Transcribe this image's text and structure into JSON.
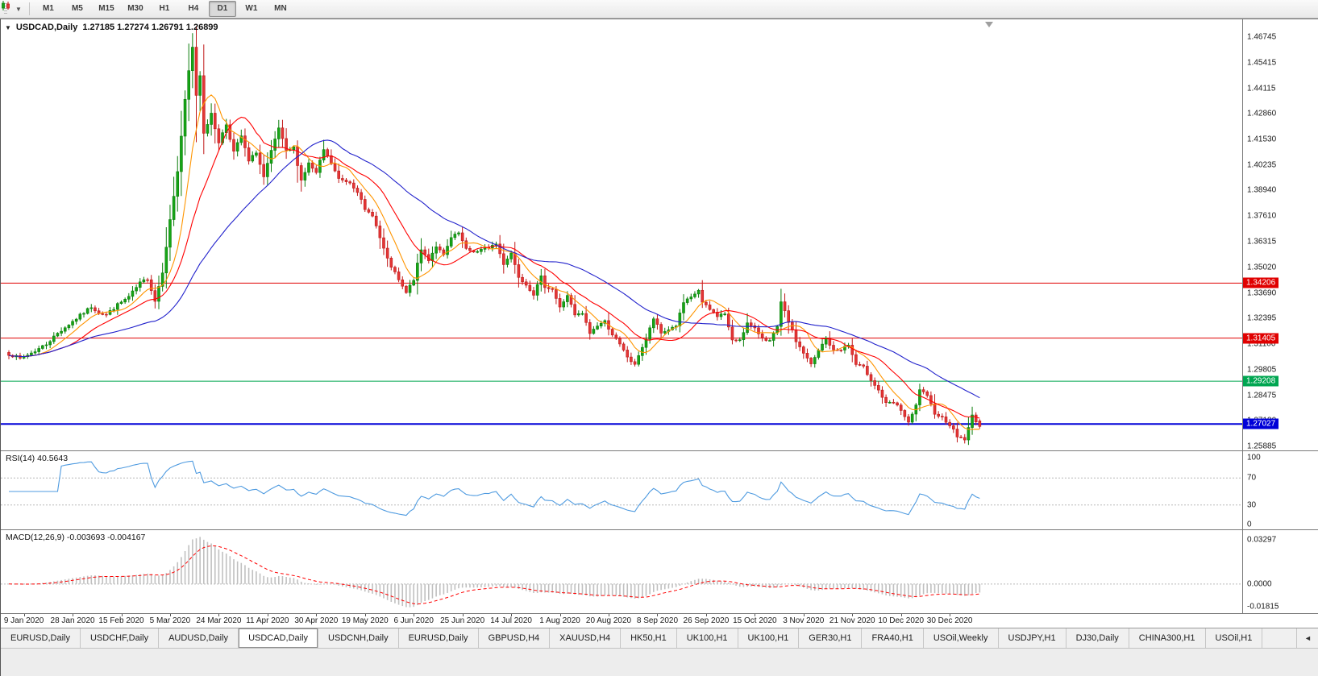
{
  "toolbar": {
    "timeframes": [
      "M1",
      "M5",
      "M15",
      "M30",
      "H1",
      "H4",
      "D1",
      "W1",
      "MN"
    ],
    "active_timeframe": "D1"
  },
  "chart": {
    "symbol_title": "USDCAD,Daily",
    "ohlc_text": "1.27185 1.27274 1.26791 1.26899",
    "price_axis_labels": [
      "1.46745",
      "1.45415",
      "1.44115",
      "1.42860",
      "1.41530",
      "1.40235",
      "1.38940",
      "1.37610",
      "1.36315",
      "1.35020",
      "1.33690",
      "1.32395",
      "1.31100",
      "1.29805",
      "1.28475",
      "1.27180",
      "1.25885"
    ]
  },
  "rsi": {
    "label": "RSI(14)",
    "value": "40.5643",
    "axis_labels": [
      "100",
      "70",
      "30",
      "0"
    ],
    "levels": [
      70,
      30
    ]
  },
  "macd": {
    "label": "MACD(12,26,9)",
    "values": "-0.003693 -0.004167",
    "axis_labels": [
      {
        "text": "0.03297",
        "pos": "top"
      },
      {
        "text": "0.0000",
        "pos": "zero"
      },
      {
        "text": "-0.01815",
        "pos": "bottom"
      }
    ]
  },
  "time_axis": {
    "labels": [
      "9 Jan 2020",
      "28 Jan 2020",
      "15 Feb 2020",
      "5 Mar 2020",
      "24 Mar 2020",
      "11 Apr 2020",
      "30 Apr 2020",
      "19 May 2020",
      "6 Jun 2020",
      "25 Jun 2020",
      "14 Jul 2020",
      "1 Aug 2020",
      "20 Aug 2020",
      "8 Sep 2020",
      "26 Sep 2020",
      "15 Oct 2020",
      "3 Nov 2020",
      "21 Nov 2020",
      "10 Dec 2020",
      "30 Dec 2020"
    ]
  },
  "tabs": {
    "items": [
      "EURUSD,Daily",
      "USDCHF,Daily",
      "AUDUSD,Daily",
      "USDCAD,Daily",
      "USDCNH,Daily",
      "EURUSD,Daily",
      "GBPUSD,H4",
      "XAUUSD,H4",
      "HK50,H1",
      "UK100,H1",
      "UK100,H1",
      "GER30,H1",
      "FRA40,H1",
      "USOil,Weekly",
      "USDJPY,H1",
      "DJ30,Daily",
      "CHINA300,H1",
      "USOil,H1"
    ],
    "active_index": 3,
    "scroll_arrow": "◄"
  },
  "colors": {
    "bull": "#16a516",
    "bull_edge": "#0b7d0b",
    "bear": "#e33636",
    "bear_edge": "#c01818",
    "ma_fast": "#ff9500",
    "ma_mid": "#ff0000",
    "ma_slow": "#2222cc",
    "rsi_line": "#4f9be0",
    "macd_hist": "#c0c0c0",
    "macd_signal": "#ff0000",
    "level_dotted": "#b8b8b8"
  },
  "chart_data": {
    "type": "candlestick",
    "symbol": "USDCAD",
    "timeframe": "Daily",
    "last_ohlc": {
      "open": 1.27185,
      "high": 1.27274,
      "low": 1.26791,
      "close": 1.26899
    },
    "ylim": [
      1.25885,
      1.46745
    ],
    "num_candles": 260,
    "x_label_step_bars": 13,
    "hlines": [
      {
        "price": 1.34206,
        "label": "1.34206",
        "color": "#e00000",
        "width": 1
      },
      {
        "price": 1.31405,
        "label": "1.31405",
        "color": "#e00000",
        "width": 1
      },
      {
        "price": 1.29208,
        "label": "1.29208",
        "color": "#00a651",
        "width": 1
      },
      {
        "price": 1.27027,
        "label": "1.27027",
        "color": "#0000d8",
        "width": 2
      }
    ],
    "moving_averages": [
      {
        "period": 8,
        "color": "#ff9500"
      },
      {
        "period": 17,
        "color": "#ff0000"
      },
      {
        "period": 40,
        "color": "#2222cc"
      }
    ],
    "indicators": {
      "rsi": {
        "period": 14,
        "current": 40.5643
      },
      "macd": {
        "fast": 12,
        "slow": 26,
        "signal": 9,
        "current_macd": -0.003693,
        "current_signal": -0.004167
      }
    },
    "price_keypoints": [
      [
        0,
        1.306
      ],
      [
        3,
        1.3035
      ],
      [
        7,
        1.3075
      ],
      [
        10,
        1.311
      ],
      [
        13,
        1.3165
      ],
      [
        16,
        1.321
      ],
      [
        19,
        1.3255
      ],
      [
        22,
        1.33
      ],
      [
        24,
        1.327
      ],
      [
        26,
        1.326
      ],
      [
        29,
        1.331
      ],
      [
        32,
        1.335
      ],
      [
        35,
        1.342
      ],
      [
        37,
        1.3445
      ],
      [
        39,
        1.333
      ],
      [
        41,
        1.348
      ],
      [
        43,
        1.374
      ],
      [
        45,
        1.399
      ],
      [
        47,
        1.435
      ],
      [
        48,
        1.45
      ],
      [
        49,
        1.462
      ],
      [
        50,
        1.438
      ],
      [
        51,
        1.448
      ],
      [
        52,
        1.419
      ],
      [
        54,
        1.428
      ],
      [
        56,
        1.414
      ],
      [
        58,
        1.423
      ],
      [
        60,
        1.409
      ],
      [
        62,
        1.417
      ],
      [
        64,
        1.404
      ],
      [
        66,
        1.409
      ],
      [
        68,
        1.396
      ],
      [
        70,
        1.409
      ],
      [
        72,
        1.421
      ],
      [
        74,
        1.409
      ],
      [
        76,
        1.411
      ],
      [
        78,
        1.3945
      ],
      [
        80,
        1.403
      ],
      [
        82,
        1.398
      ],
      [
        84,
        1.41
      ],
      [
        86,
        1.403
      ],
      [
        88,
        1.395
      ],
      [
        91,
        1.3935
      ],
      [
        93,
        1.389
      ],
      [
        95,
        1.379
      ],
      [
        97,
        1.377
      ],
      [
        99,
        1.365
      ],
      [
        101,
        1.354
      ],
      [
        103,
        1.347
      ],
      [
        105,
        1.34
      ],
      [
        106,
        1.337
      ],
      [
        108,
        1.344
      ],
      [
        110,
        1.359
      ],
      [
        112,
        1.354
      ],
      [
        114,
        1.361
      ],
      [
        116,
        1.356
      ],
      [
        118,
        1.365
      ],
      [
        120,
        1.3675
      ],
      [
        122,
        1.359
      ],
      [
        125,
        1.358
      ],
      [
        128,
        1.3605
      ],
      [
        130,
        1.362
      ],
      [
        132,
        1.352
      ],
      [
        134,
        1.3575
      ],
      [
        136,
        1.3455
      ],
      [
        138,
        1.3415
      ],
      [
        140,
        1.3365
      ],
      [
        142,
        1.345
      ],
      [
        143,
        1.3405
      ],
      [
        145,
        1.339
      ],
      [
        147,
        1.3295
      ],
      [
        149,
        1.336
      ],
      [
        151,
        1.3255
      ],
      [
        153,
        1.3265
      ],
      [
        155,
        1.3165
      ],
      [
        157,
        1.3205
      ],
      [
        159,
        1.3225
      ],
      [
        161,
        1.316
      ],
      [
        163,
        1.3105
      ],
      [
        165,
        1.3045
      ],
      [
        167,
        1.3
      ],
      [
        168,
        1.3055
      ],
      [
        170,
        1.3135
      ],
      [
        172,
        1.324
      ],
      [
        174,
        1.3165
      ],
      [
        176,
        1.3185
      ],
      [
        178,
        1.3205
      ],
      [
        180,
        1.332
      ],
      [
        182,
        1.3345
      ],
      [
        184,
        1.3385
      ],
      [
        185,
        1.332
      ],
      [
        187,
        1.3285
      ],
      [
        189,
        1.3255
      ],
      [
        191,
        1.3265
      ],
      [
        193,
        1.3125
      ],
      [
        195,
        1.3135
      ],
      [
        197,
        1.3215
      ],
      [
        199,
        1.3185
      ],
      [
        201,
        1.3145
      ],
      [
        203,
        1.3125
      ],
      [
        205,
        1.3195
      ],
      [
        206,
        1.332
      ],
      [
        208,
        1.3225
      ],
      [
        210,
        1.3125
      ],
      [
        212,
        1.3065
      ],
      [
        214,
        1.3005
      ],
      [
        216,
        1.3075
      ],
      [
        218,
        1.314
      ],
      [
        220,
        1.3075
      ],
      [
        222,
        1.3085
      ],
      [
        224,
        1.3105
      ],
      [
        226,
        1.3005
      ],
      [
        228,
        1.299
      ],
      [
        230,
        1.293
      ],
      [
        232,
        1.2875
      ],
      [
        234,
        1.2805
      ],
      [
        236,
        1.281
      ],
      [
        238,
        1.2775
      ],
      [
        240,
        1.2705
      ],
      [
        242,
        1.2795
      ],
      [
        243,
        1.288
      ],
      [
        245,
        1.284
      ],
      [
        247,
        1.276
      ],
      [
        249,
        1.2735
      ],
      [
        251,
        1.27
      ],
      [
        253,
        1.264
      ],
      [
        255,
        1.2625
      ],
      [
        256,
        1.268
      ],
      [
        257,
        1.2745
      ],
      [
        258,
        1.272
      ],
      [
        259,
        1.26899
      ]
    ]
  }
}
